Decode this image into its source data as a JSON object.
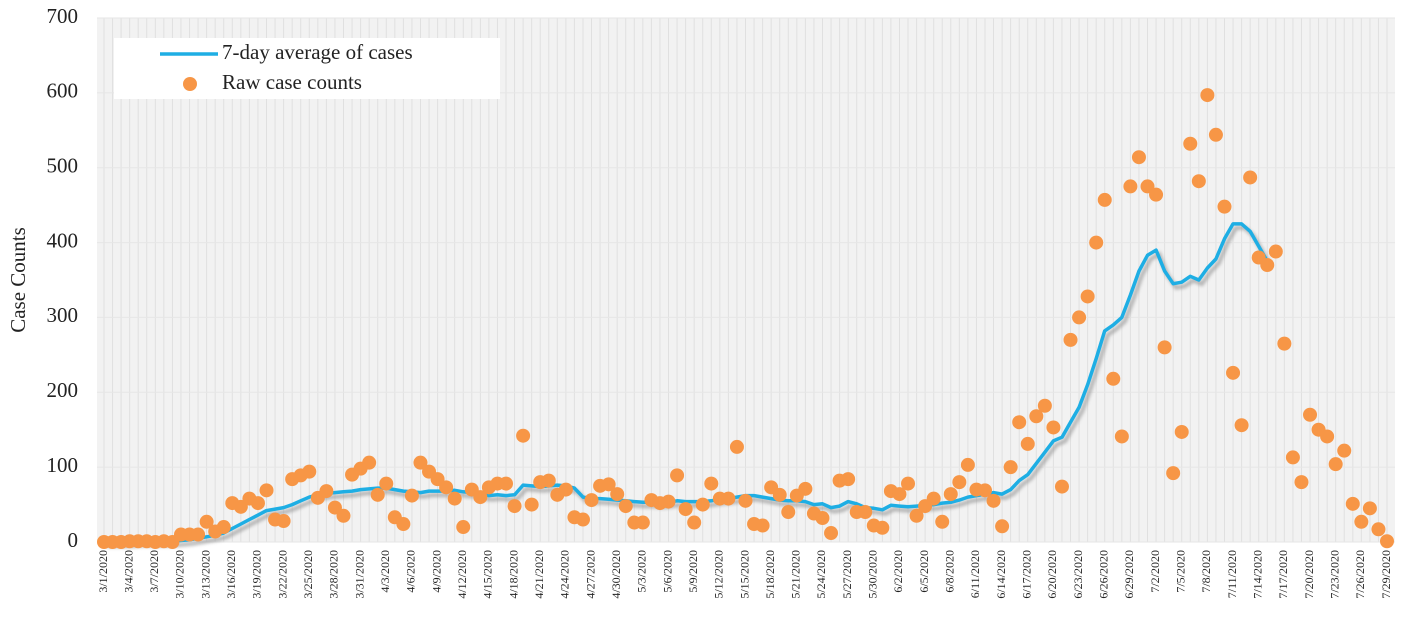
{
  "chart_data": {
    "type": "line",
    "y_label": "Case Counts",
    "categories": [
      "3/1/2020",
      null,
      null,
      "3/4/2020",
      null,
      null,
      "3/7/2020",
      null,
      null,
      "3/10/2020",
      null,
      null,
      "3/13/2020",
      null,
      null,
      "3/16/2020",
      null,
      null,
      "3/19/2020",
      null,
      null,
      "3/22/2020",
      null,
      null,
      "3/25/2020",
      null,
      null,
      "3/28/2020",
      null,
      null,
      "3/31/2020",
      null,
      null,
      "4/3/2020",
      null,
      null,
      "4/6/2020",
      null,
      null,
      "4/9/2020",
      null,
      null,
      "4/12/2020",
      null,
      null,
      "4/15/2020",
      null,
      null,
      "4/18/2020",
      null,
      null,
      "4/21/2020",
      null,
      null,
      "4/24/2020",
      null,
      null,
      "4/27/2020",
      null,
      null,
      "4/30/2020",
      null,
      null,
      "5/3/2020",
      null,
      null,
      "5/6/2020",
      null,
      null,
      "5/9/2020",
      null,
      null,
      "5/12/2020",
      null,
      null,
      "5/15/2020",
      null,
      null,
      "5/18/2020",
      null,
      null,
      "5/21/2020",
      null,
      null,
      "5/24/2020",
      null,
      null,
      "5/27/2020",
      null,
      null,
      "5/30/2020",
      null,
      null,
      "6/2/2020",
      null,
      null,
      "6/5/2020",
      null,
      null,
      "6/8/2020",
      null,
      null,
      "6/11/2020",
      null,
      null,
      "6/14/2020",
      null,
      null,
      "6/17/2020",
      null,
      null,
      "6/20/2020",
      null,
      null,
      "6/23/2020",
      null,
      null,
      "6/26/2020",
      null,
      null,
      "6/29/2020",
      null,
      null,
      "7/2/2020",
      null,
      null,
      "7/5/2020",
      null,
      null,
      "7/8/2020",
      null,
      null,
      "7/11/2020",
      null,
      null,
      "7/14/2020",
      null,
      null,
      "7/17/2020",
      null,
      null,
      "7/20/2020",
      null,
      null,
      "7/23/2020",
      null,
      null,
      "7/26/2020",
      null,
      null,
      "7/29/2020"
    ],
    "series": [
      {
        "name": "7-day average of cases",
        "type": "line",
        "color": "#1eaee4",
        "values": [
          0,
          0,
          0,
          0,
          1,
          1,
          1,
          1,
          1,
          2,
          3,
          5,
          7,
          9,
          12,
          18,
          24,
          30,
          36,
          42,
          44,
          46,
          50,
          55,
          60,
          63,
          65,
          66,
          67,
          68,
          70,
          71,
          72,
          72,
          70,
          68,
          67,
          66,
          68,
          68,
          68,
          69,
          67,
          66,
          64,
          62,
          63,
          62,
          63,
          76,
          75,
          74,
          75,
          76,
          75,
          72,
          60,
          58,
          58,
          57,
          56,
          55,
          54,
          53,
          53,
          52,
          53,
          55,
          54,
          54,
          54,
          55,
          57,
          58,
          60,
          62,
          62,
          60,
          58,
          56,
          55,
          55,
          54,
          50,
          51,
          46,
          48,
          54,
          51,
          46,
          45,
          43,
          49,
          48,
          47,
          48,
          49,
          50,
          52,
          53,
          56,
          60,
          62,
          64,
          66,
          64,
          70,
          82,
          90,
          105,
          120,
          135,
          140,
          160,
          180,
          210,
          245,
          282,
          290,
          300,
          330,
          362,
          383,
          390,
          362,
          345,
          347,
          355,
          350,
          366,
          378,
          405,
          425,
          425,
          415,
          395,
          375,
          null,
          null,
          null,
          null,
          null,
          null,
          null,
          null,
          null,
          null,
          null,
          null,
          null,
          null
        ]
      },
      {
        "name": "Raw case counts",
        "type": "scatter",
        "color": "#f79646",
        "values": [
          0,
          0,
          0,
          1,
          1,
          1,
          0,
          1,
          0,
          10,
          10,
          10,
          27,
          14,
          20,
          52,
          47,
          58,
          52,
          69,
          30,
          28,
          84,
          89,
          94,
          59,
          68,
          46,
          35,
          90,
          98,
          106,
          63,
          78,
          33,
          24,
          62,
          106,
          94,
          84,
          73,
          58,
          20,
          70,
          60,
          73,
          78,
          78,
          48,
          142,
          50,
          80,
          82,
          63,
          70,
          33,
          30,
          56,
          75,
          77,
          64,
          48,
          26,
          26,
          56,
          52,
          54,
          89,
          44,
          26,
          50,
          78,
          58,
          58,
          127,
          55,
          24,
          22,
          73,
          63,
          40,
          62,
          71,
          38,
          32,
          12,
          82,
          84,
          40,
          40,
          22,
          19,
          68,
          64,
          78,
          35,
          48,
          58,
          27,
          64,
          80,
          103,
          70,
          69,
          55,
          21,
          100,
          160,
          131,
          168,
          182,
          153,
          74,
          270,
          300,
          328,
          400,
          457,
          218,
          141,
          475,
          514,
          475,
          464,
          260,
          92,
          147,
          532,
          482,
          597,
          544,
          448,
          226,
          156,
          487,
          380,
          370,
          388,
          265,
          113,
          80,
          170,
          150,
          141,
          104,
          122,
          51,
          27,
          45,
          17,
          1
        ]
      }
    ],
    "ylim": [
      0,
      700
    ],
    "yticks": [
      0,
      100,
      200,
      300,
      400,
      500,
      600,
      700
    ],
    "grid": true,
    "legend": "top-left"
  }
}
